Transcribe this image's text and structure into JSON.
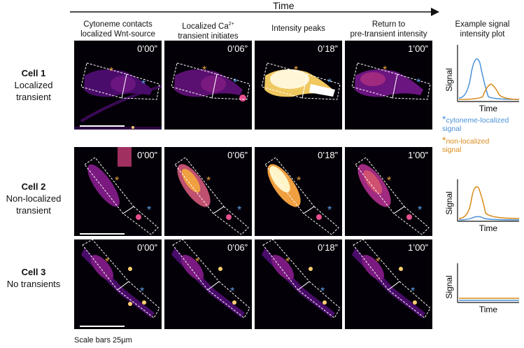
{
  "header": {
    "time_label": "Time",
    "columns": [
      {
        "line1": "Cytoneme contacts",
        "line2": "localized Wnt-source"
      },
      {
        "line1": "Localized Ca",
        "sup": "2+",
        "line2": "transient initiates"
      },
      {
        "line1": "Intensity peaks",
        "line2": ""
      },
      {
        "line1": "Return to",
        "line2": "pre-transient intensity"
      }
    ],
    "plot_title_line1": "Example signal",
    "plot_title_line2": "intensity plot"
  },
  "rows": [
    {
      "name": "Cell 1",
      "desc1": "Localized",
      "desc2": "transient",
      "timestamps": [
        "0’00”",
        "0’06”",
        "0’18”",
        "1’00”"
      ]
    },
    {
      "name": "Cell 2",
      "desc1": "Non-localized",
      "desc2": "transient",
      "timestamps": [
        "0’00”",
        "0’06”",
        "0’18”",
        "1’00”"
      ]
    },
    {
      "name": "Cell 3",
      "desc1": "No transients",
      "desc2": "",
      "timestamps": [
        "0’00”",
        "0’06”",
        "0’18”",
        "1’00”"
      ]
    }
  ],
  "plots": {
    "ylabel": "Signal",
    "xlabel": "Time"
  },
  "legend": {
    "star": "*",
    "blue_label_line1": "cytoneme-localized",
    "blue_label_line2": "signal",
    "orange_label_line1": "non-localized",
    "orange_label_line2": "signal"
  },
  "marker_star": "*",
  "scale_note": "Scale bars 25µm",
  "colors": {
    "cytoneme_localized": "#4a90d9",
    "non_localized": "#d98b1a",
    "background": "#040008"
  }
}
